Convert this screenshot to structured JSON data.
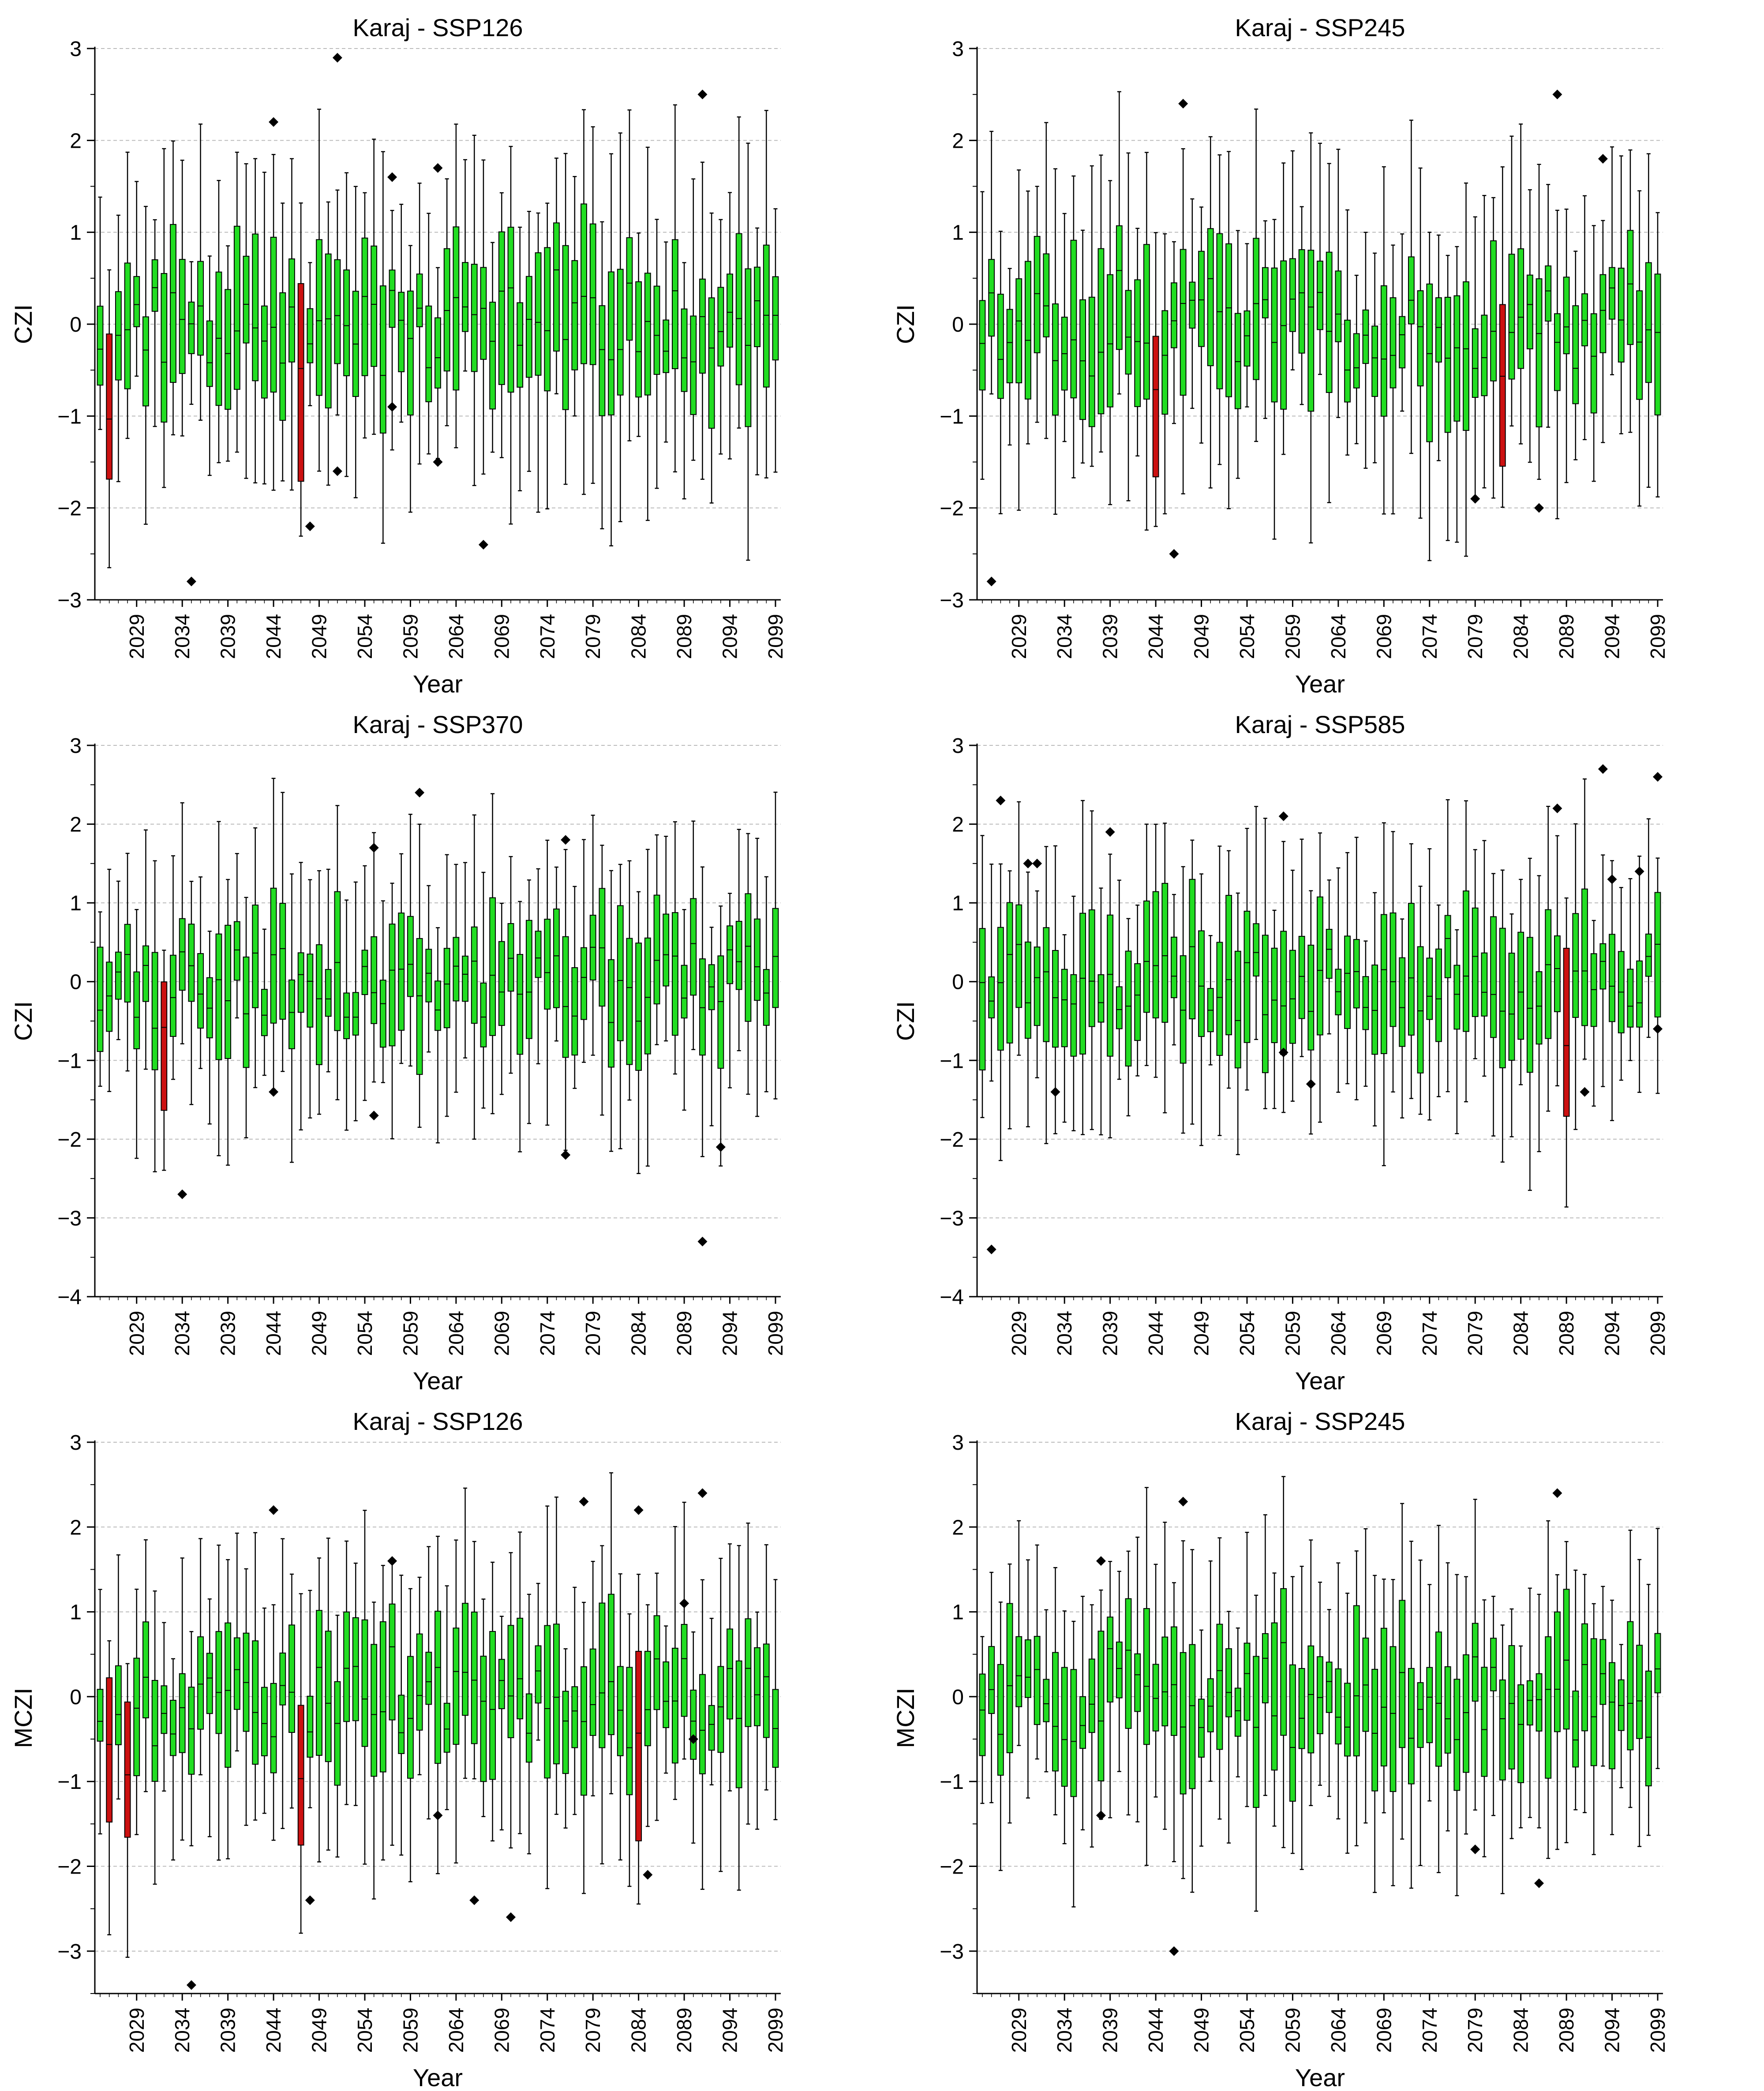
{
  "figure": {
    "x_tick_labels": [
      "2029",
      "2034",
      "2039",
      "2044",
      "2049",
      "2054",
      "2059",
      "2064",
      "2069",
      "2074",
      "2079",
      "2084",
      "2089",
      "2094",
      "2099"
    ],
    "colors": {
      "box_fill": "#22dd22",
      "drought_box_fill": "#cc1111",
      "outline": "#000000",
      "grid": "#bbbbbb"
    }
  },
  "chart_data": [
    {
      "type": "boxplot",
      "title": "Karaj - SSP126",
      "xlabel": "Year",
      "ylabel": "CZI",
      "ylim": [
        -3,
        3
      ],
      "yticks": [
        -3,
        -2,
        -1,
        0,
        1,
        2,
        3
      ],
      "xrange": [
        2025,
        2099
      ],
      "grid": "horizontal dashed",
      "red_years": [
        2026,
        2047
      ],
      "outliers": [
        [
          2035,
          -2.8
        ],
        [
          2044,
          2.2
        ],
        [
          2048,
          -2.2
        ],
        [
          2051,
          2.9
        ],
        [
          2051,
          -1.6
        ],
        [
          2057,
          1.6
        ],
        [
          2057,
          -0.9
        ],
        [
          2062,
          -1.5
        ],
        [
          2062,
          1.7
        ],
        [
          2067,
          -2.4
        ],
        [
          2091,
          2.5
        ]
      ],
      "box_seed": 11
    },
    {
      "type": "boxplot",
      "title": "Karaj - SSP245",
      "xlabel": "Year",
      "ylabel": "CZI",
      "ylim": [
        -3,
        3
      ],
      "yticks": [
        -3,
        -2,
        -1,
        0,
        1,
        2,
        3
      ],
      "xrange": [
        2025,
        2099
      ],
      "grid": "horizontal dashed",
      "red_years": [
        2044,
        2082
      ],
      "outliers": [
        [
          2026,
          -2.8
        ],
        [
          2046,
          -2.5
        ],
        [
          2047,
          2.4
        ],
        [
          2079,
          -1.9
        ],
        [
          2086,
          -2.0
        ],
        [
          2088,
          2.5
        ],
        [
          2093,
          1.8
        ]
      ],
      "box_seed": 23
    },
    {
      "type": "boxplot",
      "title": "Karaj - SSP370",
      "xlabel": "Year",
      "ylabel": "CZI",
      "ylim": [
        -4,
        3
      ],
      "yticks": [
        -4,
        -3,
        -2,
        -1,
        0,
        1,
        2,
        3
      ],
      "xrange": [
        2025,
        2099
      ],
      "grid": "horizontal dashed",
      "red_years": [
        2032
      ],
      "outliers": [
        [
          2034,
          -2.7
        ],
        [
          2044,
          -1.4
        ],
        [
          2055,
          1.7
        ],
        [
          2055,
          -1.7
        ],
        [
          2060,
          2.4
        ],
        [
          2076,
          1.8
        ],
        [
          2076,
          -2.2
        ],
        [
          2091,
          -3.3
        ],
        [
          2093,
          -2.1
        ]
      ],
      "box_seed": 37
    },
    {
      "type": "boxplot",
      "title": "Karaj - SSP585",
      "xlabel": "Year",
      "ylabel": "CZI",
      "ylim": [
        -4,
        3
      ],
      "yticks": [
        -4,
        -3,
        -2,
        -1,
        0,
        1,
        2,
        3
      ],
      "xrange": [
        2025,
        2099
      ],
      "grid": "horizontal dashed",
      "red_years": [
        2089
      ],
      "outliers": [
        [
          2026,
          -3.4
        ],
        [
          2027,
          2.3
        ],
        [
          2030,
          1.5
        ],
        [
          2031,
          1.5
        ],
        [
          2033,
          -1.4
        ],
        [
          2039,
          1.9
        ],
        [
          2058,
          2.1
        ],
        [
          2058,
          -0.9
        ],
        [
          2061,
          -1.3
        ],
        [
          2088,
          2.2
        ],
        [
          2091,
          -1.4
        ],
        [
          2093,
          2.7
        ],
        [
          2094,
          1.3
        ],
        [
          2097,
          1.4
        ],
        [
          2099,
          2.6
        ],
        [
          2099,
          -0.6
        ]
      ],
      "box_seed": 41
    },
    {
      "type": "boxplot",
      "title": "Karaj - SSP126",
      "xlabel": "Year",
      "ylabel": "MCZI",
      "ylim": [
        -3.5,
        3
      ],
      "yticks": [
        -3,
        -2,
        -1,
        0,
        1,
        2,
        3
      ],
      "xrange": [
        2025,
        2099
      ],
      "grid": "horizontal dashed",
      "red_years": [
        2026,
        2028,
        2047,
        2084
      ],
      "outliers": [
        [
          2035,
          -3.4
        ],
        [
          2044,
          2.2
        ],
        [
          2048,
          -2.4
        ],
        [
          2057,
          1.6
        ],
        [
          2062,
          -1.4
        ],
        [
          2066,
          -2.4
        ],
        [
          2070,
          -2.6
        ],
        [
          2078,
          2.3
        ],
        [
          2084,
          2.2
        ],
        [
          2085,
          -2.1
        ],
        [
          2089,
          1.1
        ],
        [
          2090,
          -0.5
        ],
        [
          2091,
          2.4
        ]
      ],
      "box_seed": 53
    },
    {
      "type": "boxplot",
      "title": "Karaj - SSP245",
      "xlabel": "Year",
      "ylabel": "MCZI",
      "ylim": [
        -3.5,
        3
      ],
      "yticks": [
        -3,
        -2,
        -1,
        0,
        1,
        2,
        3
      ],
      "xrange": [
        2025,
        2099
      ],
      "grid": "horizontal dashed",
      "red_years": [],
      "outliers": [
        [
          2038,
          1.6
        ],
        [
          2038,
          -1.4
        ],
        [
          2046,
          -3.0
        ],
        [
          2047,
          2.3
        ],
        [
          2079,
          -1.8
        ],
        [
          2086,
          -2.2
        ],
        [
          2088,
          2.4
        ]
      ],
      "box_seed": 67
    }
  ]
}
